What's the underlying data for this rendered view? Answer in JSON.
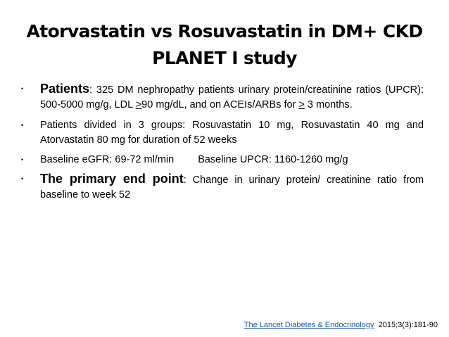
{
  "slide": {
    "title_line1": "Atorvastatin vs Rosuvastatin in DM+ CKD",
    "title_line2": "PLANET I study",
    "bullet_marker": "•",
    "bullets": {
      "patients": {
        "lead": "Patients",
        "text_a": ": 325 DM nephropathy patients urinary protein/creatinine ratios (UPCR): 500-5000 mg/g, LDL ",
        "gte_1": ">",
        "text_b": "90 mg/dL, and on ACEIs/ARBs for ",
        "gte_2": ">",
        "text_c": " 3 months."
      },
      "groups": {
        "text": "Patients divided in 3 groups: Rosuvastatin 10 mg, Rosuvastatin 40 mg and Atorvastatin 80 mg  for duration of 52 weeks"
      },
      "baseline": {
        "egfr": "Baseline eGFR: 69-72 ml/min",
        "upcr": "Baseline UPCR: 1160-1260 mg/g"
      },
      "endpoint": {
        "lead": "The primary end point",
        "text": ": Change in urinary protein/ creatinine ratio from baseline to week 52"
      }
    },
    "citation": {
      "journal": "The Lancet Diabetes & Endocrinology",
      "ref": "2015;3(3):181-90"
    }
  }
}
